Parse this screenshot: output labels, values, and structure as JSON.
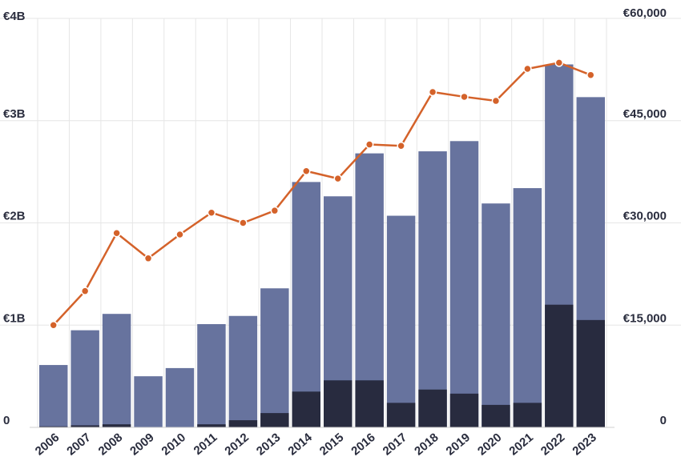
{
  "chart_data": {
    "type": "bar",
    "title": "",
    "xlabel": "",
    "ylabel": "",
    "categories": [
      "2006",
      "2007",
      "2008",
      "2009",
      "2010",
      "2011",
      "2012",
      "2013",
      "2014",
      "2015",
      "2016",
      "2017",
      "2018",
      "2019",
      "2020",
      "2021",
      "2022",
      "2023"
    ],
    "series": [
      {
        "kind": "bar",
        "axis": "left",
        "stack": "overlay",
        "unit": "€B",
        "values": [
          0.61,
          0.95,
          1.11,
          0.5,
          0.58,
          1.01,
          1.09,
          1.36,
          2.4,
          2.26,
          2.68,
          2.07,
          2.7,
          2.8,
          2.19,
          2.34,
          3.55,
          3.23
        ],
        "color": "#67739e"
      },
      {
        "kind": "bar",
        "axis": "left",
        "stack": "overlay",
        "unit": "€B",
        "values": [
          0.01,
          0.02,
          0.03,
          0.0,
          0.0,
          0.03,
          0.07,
          0.14,
          0.35,
          0.46,
          0.46,
          0.24,
          0.37,
          0.33,
          0.22,
          0.24,
          1.2,
          1.05
        ],
        "color": "#282b3f"
      },
      {
        "kind": "line",
        "axis": "right",
        "values": [
          15000,
          20000,
          28500,
          24800,
          28300,
          31500,
          30000,
          31800,
          37600,
          36500,
          41500,
          41300,
          49200,
          48500,
          47900,
          52600,
          53500,
          51700
        ],
        "color": "#d4622a"
      }
    ],
    "left_axis": {
      "ylim": [
        0,
        4
      ],
      "ticks": [
        0,
        1,
        2,
        3,
        4
      ],
      "tick_labels": [
        "0",
        "€1B",
        "€2B",
        "€3B",
        "€4B"
      ]
    },
    "right_axis": {
      "ylim": [
        0,
        60000
      ],
      "ticks": [
        0,
        15000,
        30000,
        45000,
        60000
      ],
      "tick_labels": [
        "0",
        "€15,000",
        "€30,000",
        "€45,000",
        "€60,000"
      ]
    },
    "grid": true,
    "legend": "none"
  }
}
